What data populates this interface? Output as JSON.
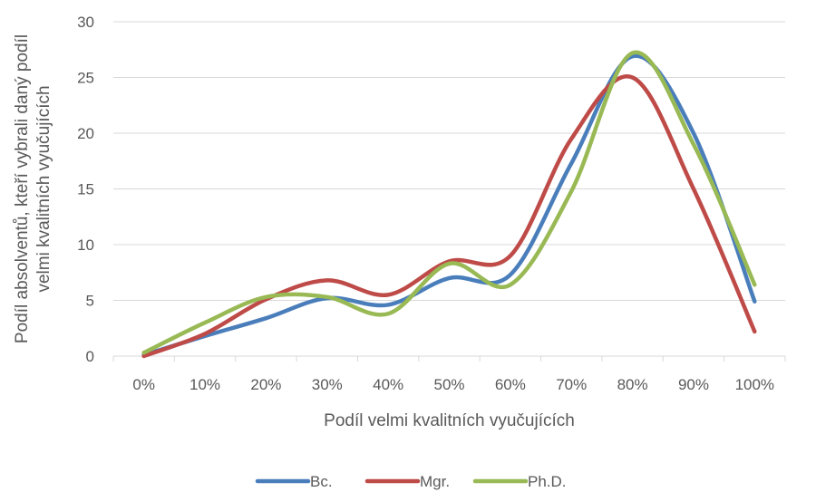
{
  "chart_data": {
    "type": "line",
    "smooth": true,
    "categories": [
      "0%",
      "10%",
      "20%",
      "30%",
      "40%",
      "50%",
      "60%",
      "70%",
      "80%",
      "90%",
      "100%"
    ],
    "series": [
      {
        "name": "Bc.",
        "color": "#4a7ebb",
        "values": [
          0.1,
          1.8,
          3.4,
          5.2,
          4.6,
          7.0,
          7.3,
          17.3,
          26.9,
          20.0,
          4.9
        ]
      },
      {
        "name": "Mgr.",
        "color": "#be4b48",
        "values": [
          0.0,
          2.0,
          5.1,
          6.8,
          5.5,
          8.5,
          9.0,
          19.5,
          25.0,
          15.0,
          2.2
        ]
      },
      {
        "name": "Ph.D.",
        "color": "#98b954",
        "values": [
          0.3,
          3.0,
          5.3,
          5.3,
          3.8,
          8.3,
          6.4,
          14.8,
          27.2,
          19.0,
          6.4
        ]
      }
    ],
    "title": "",
    "xlabel": "Podíl velmi kvalitních vyučujících",
    "ylabel_lines": [
      "Podíl absolventů, kteří vybrali daný podíl",
      "velmi kvalitních vyučujících"
    ],
    "ylim": [
      0,
      30
    ],
    "yticks": [
      0,
      5,
      10,
      15,
      20,
      25,
      30
    ],
    "grid": "horizontal",
    "legend": "bottom"
  }
}
